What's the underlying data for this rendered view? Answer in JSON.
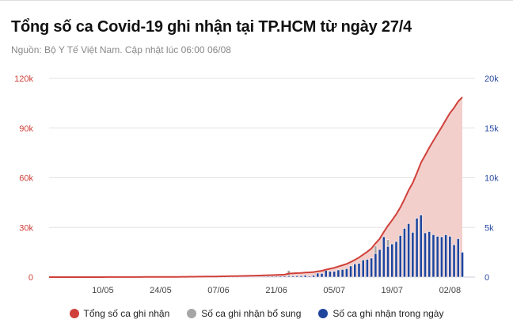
{
  "chart_data": {
    "type": "bar+line",
    "title": "Tổng số ca Covid-19 ghi nhận tại TP.HCM từ ngày 27/4",
    "subtitle": "Nguồn: Bộ Y Tế Việt Nam. Cập nhật lúc 06:00 06/08",
    "x_tick_labels": [
      "10/05",
      "24/05",
      "07/06",
      "21/06",
      "05/07",
      "19/07",
      "02/08"
    ],
    "y_left": {
      "ticks": [
        0,
        30000,
        60000,
        90000,
        120000
      ],
      "labels": [
        "0",
        "30k",
        "60k",
        "90k",
        "120k"
      ],
      "range": [
        0,
        120000
      ],
      "color": "#d0403a"
    },
    "y_right": {
      "ticks": [
        0,
        5000,
        10000,
        15000,
        20000
      ],
      "labels": [
        "0",
        "5k",
        "10k",
        "15k",
        "20k"
      ],
      "range": [
        0,
        20000
      ],
      "color": "#2a4aa0"
    },
    "grid": true,
    "legend_position": "bottom",
    "series": [
      {
        "name": "Tổng số ca ghi nhận",
        "type": "area-line",
        "axis": "left",
        "color": "#d0403a",
        "fill": "#f2cfcb"
      },
      {
        "name": "Số ca ghi nhận bổ sung",
        "type": "bar",
        "axis": "right",
        "color": "#a6a6a6",
        "values_by_date": {
          "24/06": 560,
          "15/07": 750,
          "18/07": 670
        }
      },
      {
        "name": "Số ca ghi nhận trong ngày",
        "type": "bar",
        "axis": "right",
        "color": "#1f449c",
        "values": [
          0,
          0,
          2,
          0,
          1,
          3,
          0,
          0,
          2,
          5,
          0,
          1,
          4,
          3,
          6,
          2,
          5,
          8,
          4,
          6,
          3,
          7,
          5,
          9,
          6,
          8,
          4,
          10,
          7,
          12,
          15,
          18,
          20,
          22,
          25,
          24,
          28,
          30,
          32,
          35,
          30,
          38,
          40,
          45,
          42,
          48,
          50,
          55,
          60,
          58,
          62,
          70,
          75,
          80,
          85,
          90,
          95,
          100,
          110,
          120,
          130,
          140,
          190,
          110,
          190,
          400,
          370,
          670,
          590,
          590,
          720,
          770,
          850,
          1120,
          1330,
          1390,
          1730,
          1790,
          1920,
          2380,
          2780,
          4060,
          3100,
          3340,
          3580,
          4190,
          4910,
          5390,
          4510,
          5930,
          6250,
          4460,
          4590,
          4270,
          4110,
          4060,
          4270,
          4110,
          3260,
          3870,
          2510
        ]
      }
    ]
  },
  "legend": [
    "Tổng số ca ghi nhận",
    "Số ca ghi nhận bổ sung",
    "Số ca ghi nhận trong ngày"
  ]
}
